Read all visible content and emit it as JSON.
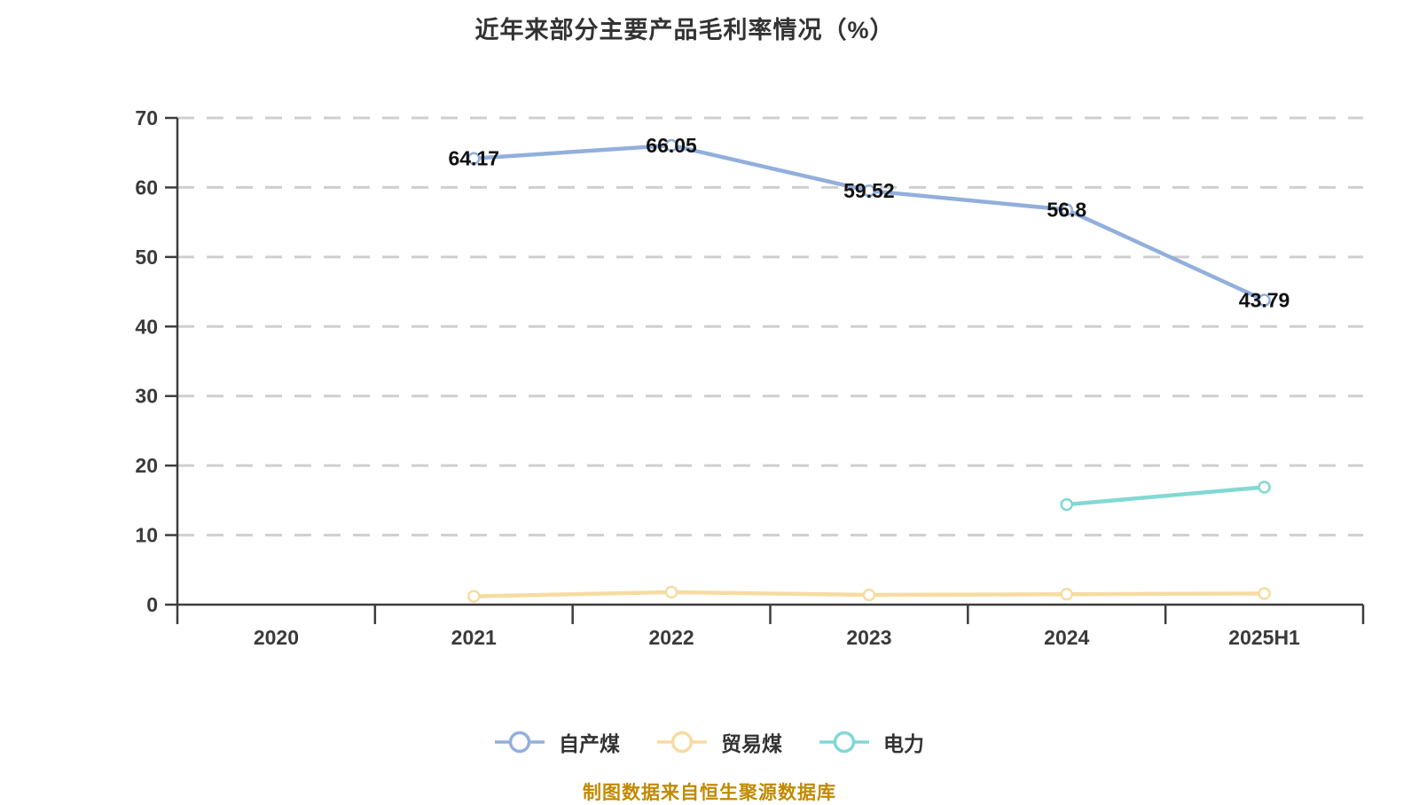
{
  "title": "近年来部分主要产品毛利率情况（%）",
  "footer": "制图数据来自恒生聚源数据库",
  "styles": {
    "title_color": "#333333",
    "axis_color": "#3D3D3D",
    "grid_color": "#CFCFCF",
    "tick_label_color": "#3A3A3A",
    "data_label_color": "#111111",
    "footer_color": "#C18A00",
    "background": "#FFFFFF"
  },
  "chart_data": {
    "type": "line",
    "title": "近年来部分主要产品毛利率情况（%）",
    "categories": [
      "2020",
      "2021",
      "2022",
      "2023",
      "2024",
      "2025H1"
    ],
    "series": [
      {
        "key": "self-produced-coal",
        "name": "自产煤",
        "color": "#92AFDC",
        "values": [
          null,
          64.17,
          66.05,
          59.52,
          56.8,
          43.79
        ],
        "labels": [
          "",
          "64.17",
          "66.05",
          "59.52",
          "56.8",
          "43.79"
        ]
      },
      {
        "key": "trade-coal",
        "name": "贸易煤",
        "color": "#F6DCA2",
        "values": [
          null,
          1.2,
          1.8,
          1.4,
          1.5,
          1.6
        ],
        "labels": null
      },
      {
        "key": "power",
        "name": "电力",
        "color": "#82D8D4",
        "values": [
          null,
          null,
          null,
          null,
          14.4,
          16.9
        ],
        "labels": null
      }
    ],
    "xlabel": "",
    "ylabel": "",
    "ylim": [
      0,
      70
    ],
    "ytick_interval": 10,
    "y_ticks": [
      0,
      10,
      20,
      30,
      40,
      50,
      60,
      70
    ],
    "grid": "horizontal-dashed",
    "legend_position": "bottom",
    "marker": "open-circle"
  }
}
